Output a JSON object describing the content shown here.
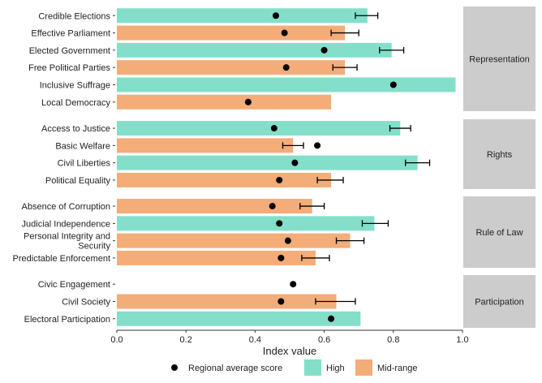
{
  "chart_data": {
    "type": "bar",
    "orientation": "horizontal",
    "xlabel": "Index value",
    "xlim": [
      0,
      1.0
    ],
    "x_ticks": [
      "0.0",
      "0.2",
      "0.4",
      "0.6",
      "0.8",
      "1.0"
    ],
    "grid": false,
    "legend": {
      "position": "bottom",
      "items": [
        {
          "key": "avg",
          "label": "Regional average score",
          "marker": "dot"
        },
        {
          "key": "High",
          "label": "High",
          "marker": "box"
        },
        {
          "key": "Mid-range",
          "label": "Mid-range",
          "marker": "box"
        }
      ]
    },
    "colors": {
      "High": "#83dfc9",
      "Mid-range": "#f4ac78",
      "panel_strip": "#cccccc",
      "dot": "#000000"
    },
    "panels": [
      {
        "name": "Representation",
        "items": [
          {
            "label": "Credible Elections",
            "value": 0.725,
            "category": "High",
            "avg": 0.46,
            "err": [
              0.69,
              0.755
            ]
          },
          {
            "label": "Effective Parliament",
            "value": 0.66,
            "category": "Mid-range",
            "avg": 0.485,
            "err": [
              0.62,
              0.7
            ]
          },
          {
            "label": "Elected Government",
            "value": 0.795,
            "category": "High",
            "avg": 0.6,
            "err": [
              0.76,
              0.83
            ]
          },
          {
            "label": "Free Political Parties",
            "value": 0.66,
            "category": "Mid-range",
            "avg": 0.49,
            "err": [
              0.625,
              0.695
            ]
          },
          {
            "label": "Inclusive Suffrage",
            "value": 0.98,
            "category": "High",
            "avg": 0.8,
            "err": null
          },
          {
            "label": "Local Democracy",
            "value": 0.62,
            "category": "Mid-range",
            "avg": 0.38,
            "err": null
          }
        ]
      },
      {
        "name": "Rights",
        "items": [
          {
            "label": "Access to Justice",
            "value": 0.82,
            "category": "High",
            "avg": 0.455,
            "err": [
              0.79,
              0.85
            ]
          },
          {
            "label": "Basic Welfare",
            "value": 0.51,
            "category": "Mid-range",
            "avg": 0.58,
            "err": [
              0.48,
              0.54
            ]
          },
          {
            "label": "Civil Liberties",
            "value": 0.87,
            "category": "High",
            "avg": 0.515,
            "err": [
              0.835,
              0.905
            ]
          },
          {
            "label": "Political Equality",
            "value": 0.62,
            "category": "Mid-range",
            "avg": 0.47,
            "err": [
              0.58,
              0.655
            ]
          }
        ]
      },
      {
        "name": "Rule of Law",
        "items": [
          {
            "label": "Absence of Corruption",
            "value": 0.565,
            "category": "Mid-range",
            "avg": 0.45,
            "err": [
              0.53,
              0.6
            ]
          },
          {
            "label": "Judicial Independence",
            "value": 0.745,
            "category": "High",
            "avg": 0.47,
            "err": [
              0.71,
              0.785
            ]
          },
          {
            "label": "Personal Integrity and Security",
            "value": 0.675,
            "category": "Mid-range",
            "avg": 0.495,
            "err": [
              0.635,
              0.715
            ]
          },
          {
            "label": "Predictable Enforcement",
            "value": 0.575,
            "category": "Mid-range",
            "avg": 0.475,
            "err": [
              0.535,
              0.615
            ]
          }
        ]
      },
      {
        "name": "Participation",
        "items": [
          {
            "label": "Civic Engagement",
            "value": null,
            "category": null,
            "avg": 0.51,
            "err": null
          },
          {
            "label": "Civil Society",
            "value": 0.635,
            "category": "Mid-range",
            "avg": 0.475,
            "err": [
              0.575,
              0.69
            ]
          },
          {
            "label": "Electoral Participation",
            "value": 0.705,
            "category": "High",
            "avg": 0.62,
            "err": null
          }
        ]
      }
    ]
  }
}
